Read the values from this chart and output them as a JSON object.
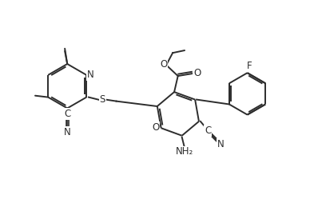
{
  "bg_color": "#ffffff",
  "line_color": "#2d2d2d",
  "line_width": 1.4,
  "font_size": 8.5,
  "figsize": [
    3.88,
    2.54
  ],
  "dpi": 100,
  "xlim": [
    0,
    10
  ],
  "ylim": [
    0,
    6.5
  ]
}
